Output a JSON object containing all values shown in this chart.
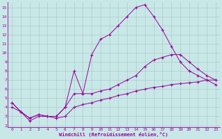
{
  "xlabel": "Windchill (Refroidissement éolien,°C)",
  "background_color": "#c8e8e8",
  "grid_color": "#b0c8c8",
  "line_color": "#990099",
  "xlim": [
    -0.5,
    23.5
  ],
  "ylim": [
    1.8,
    15.6
  ],
  "xticks": [
    0,
    1,
    2,
    3,
    4,
    5,
    6,
    7,
    8,
    9,
    10,
    11,
    12,
    13,
    14,
    15,
    16,
    17,
    18,
    19,
    20,
    21,
    22,
    23
  ],
  "yticks": [
    2,
    3,
    4,
    5,
    6,
    7,
    8,
    9,
    10,
    11,
    12,
    13,
    14,
    15
  ],
  "line1_x": [
    0,
    1,
    2,
    3,
    4,
    5,
    6,
    7,
    8,
    9,
    10,
    11,
    12,
    13,
    14,
    15,
    16,
    17,
    18,
    19,
    20,
    21,
    22,
    23
  ],
  "line1_y": [
    4.0,
    3.5,
    2.5,
    3.0,
    3.0,
    2.8,
    3.0,
    4.0,
    4.3,
    4.5,
    4.8,
    5.0,
    5.3,
    5.5,
    5.8,
    6.0,
    6.2,
    6.3,
    6.5,
    6.6,
    6.7,
    6.8,
    7.0,
    7.0
  ],
  "line2_x": [
    0,
    1,
    2,
    3,
    4,
    5,
    6,
    7,
    8,
    9,
    10,
    11,
    12,
    13,
    14,
    15,
    16,
    17,
    18,
    19,
    20,
    21,
    22,
    23
  ],
  "line2_y": [
    4.5,
    3.5,
    2.8,
    3.2,
    3.0,
    3.0,
    4.0,
    5.5,
    5.5,
    5.5,
    5.8,
    6.0,
    6.5,
    7.0,
    7.5,
    8.5,
    9.2,
    9.5,
    9.8,
    9.8,
    9.0,
    8.2,
    7.5,
    7.0
  ],
  "line3_x": [
    0,
    1,
    2,
    3,
    4,
    5,
    6,
    7,
    8,
    9,
    10,
    11,
    12,
    13,
    14,
    15,
    16,
    17,
    18,
    19,
    20,
    21,
    22,
    23
  ],
  "line3_y": [
    4.5,
    3.5,
    2.8,
    3.2,
    3.0,
    3.0,
    4.0,
    8.0,
    5.5,
    9.8,
    11.5,
    12.0,
    13.0,
    14.0,
    15.0,
    15.3,
    14.0,
    12.5,
    10.7,
    9.0,
    8.0,
    7.5,
    7.0,
    6.5
  ]
}
